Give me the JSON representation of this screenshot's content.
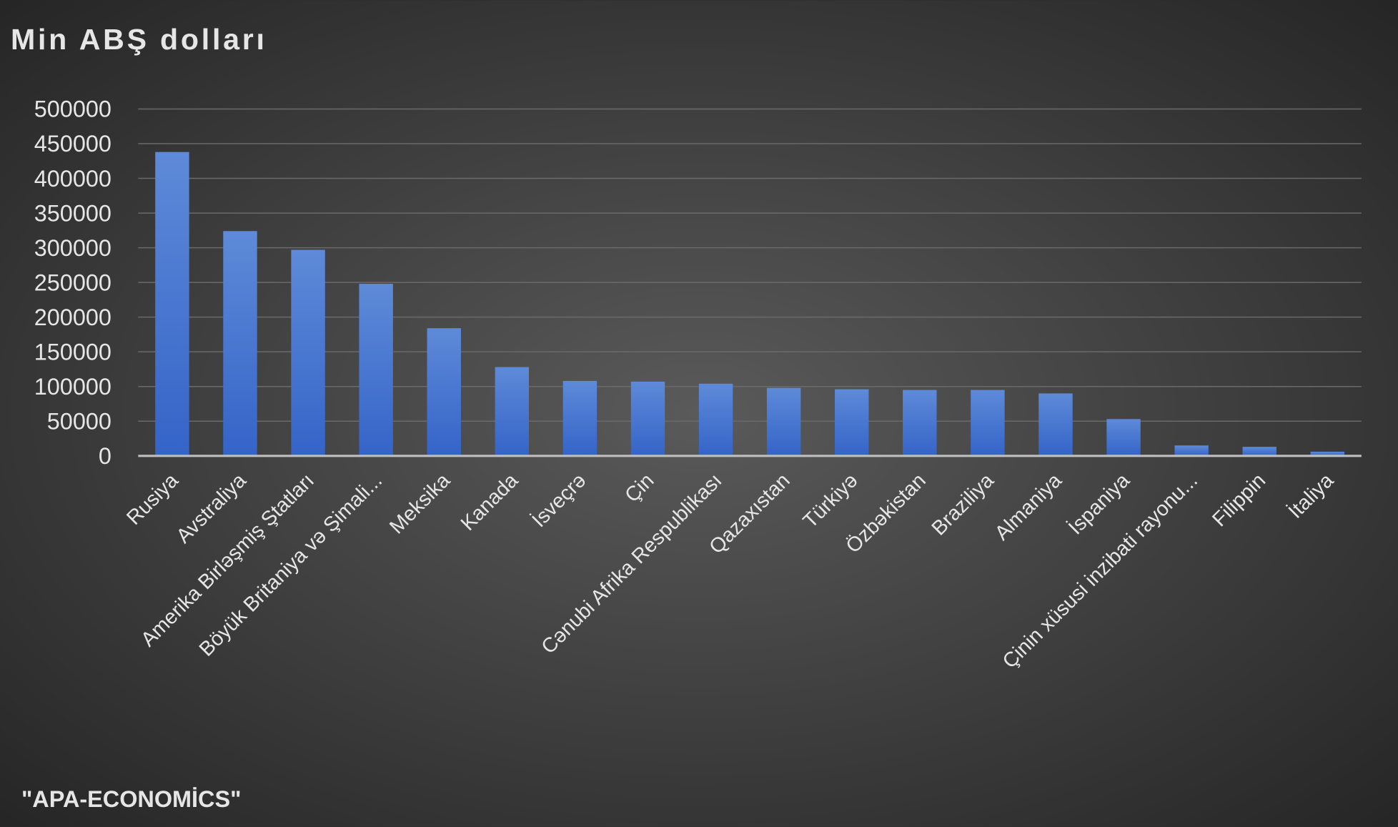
{
  "chart_data": {
    "type": "bar",
    "title": "Min ABŞ dolları",
    "categories": [
      "Rusiya",
      "Avstraliya",
      "Amerika Birləşmiş Ştatları",
      "Böyük Britaniya və Şimali...",
      "Meksika",
      "Kanada",
      "İsveçrə",
      "Çin",
      "Cənubi Afrika Respublikası",
      "Qazaxıstan",
      "Türkiyə",
      "Özbəkistan",
      "Braziliya",
      "Almaniya",
      "İspaniya",
      "Çinin xüsusi inzibati rayonu...",
      "Filippin",
      "İtaliya"
    ],
    "values": [
      438000,
      324000,
      297000,
      248000,
      184000,
      128000,
      108000,
      107000,
      104000,
      98000,
      96000,
      95000,
      95000,
      90000,
      53000,
      15000,
      13000,
      6000
    ],
    "color": "#4a78d2",
    "ylim": [
      0,
      500000
    ],
    "yticks": [
      0,
      50000,
      100000,
      150000,
      200000,
      250000,
      300000,
      350000,
      400000,
      450000,
      500000
    ],
    "grid": true,
    "source": "\"APA-ECONOMİCS\""
  }
}
